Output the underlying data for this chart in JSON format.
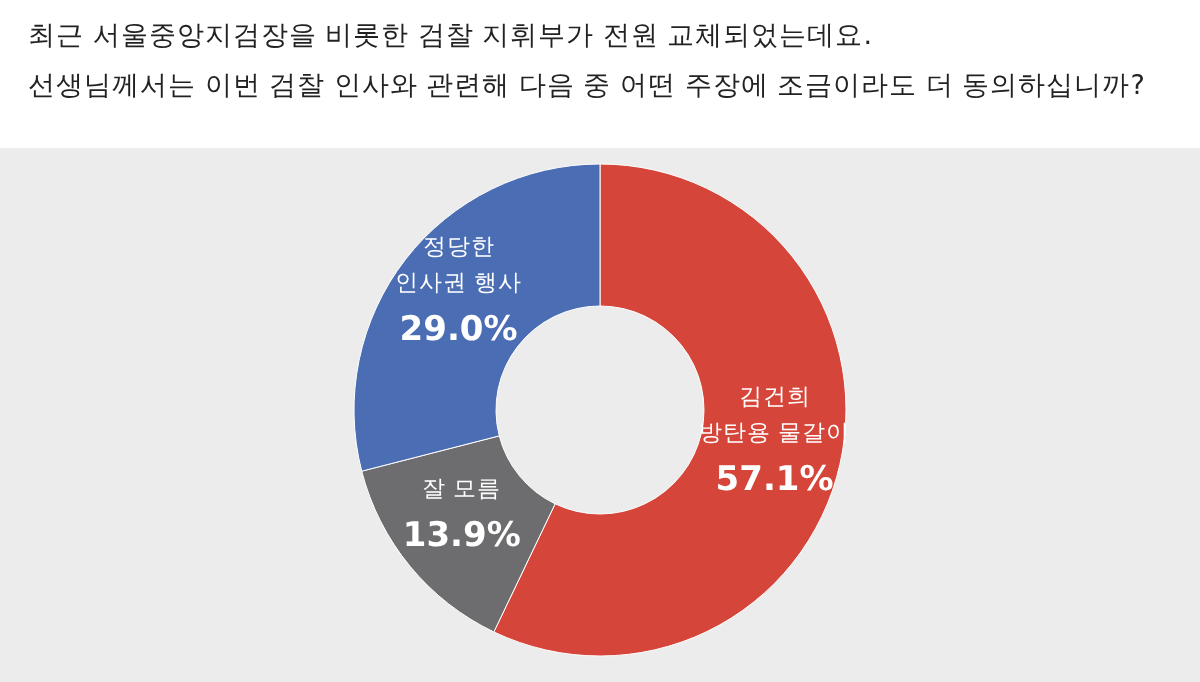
{
  "chart_data": {
    "type": "donut",
    "title": "최근 서울중앙지검장을 비롯한 검찰 지휘부가 전원 교체되었는데요.\n선생님께서는 이번 검찰 인사와 관련해 다음 중 어떤 주장에 조금이라도 더 동의하십니까?",
    "categories": [
      "김건희\n방탄용 물갈이",
      "잘 모름",
      "정당한\n인사권 행사"
    ],
    "values": [
      57.1,
      13.9,
      29.0
    ],
    "colors": [
      "#d6453a",
      "#6d6d6f",
      "#4a6db3"
    ],
    "value_labels": [
      "57.1%",
      "13.9%",
      "29.0%"
    ]
  }
}
